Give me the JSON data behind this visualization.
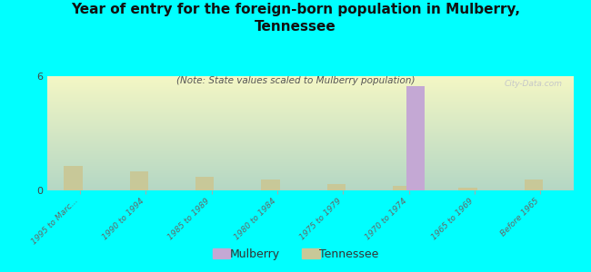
{
  "title": "Year of entry for the foreign-born population in Mulberry,\nTennessee",
  "subtitle": "(Note: State values scaled to Mulberry population)",
  "background_color": "#00FFFF",
  "categories": [
    "1995 to Marc...",
    "1990 to 1994",
    "1985 to 1989",
    "1980 to 1984",
    "1975 to 1979",
    "1970 to 1974",
    "1965 to 1969",
    "Before 1965"
  ],
  "mulberry_values": [
    0,
    0,
    0,
    0,
    0,
    5.5,
    0,
    0
  ],
  "tennessee_values": [
    1.3,
    1.0,
    0.7,
    0.55,
    0.35,
    0.25,
    0.15,
    0.55
  ],
  "mulberry_color": "#c4a8d4",
  "tennessee_color": "#c8c898",
  "ylim": [
    0,
    6
  ],
  "yticks": [
    0,
    6
  ],
  "watermark": "City-Data.com",
  "legend_mulberry": "Mulberry",
  "legend_tennessee": "Tennessee",
  "bar_width": 0.4
}
